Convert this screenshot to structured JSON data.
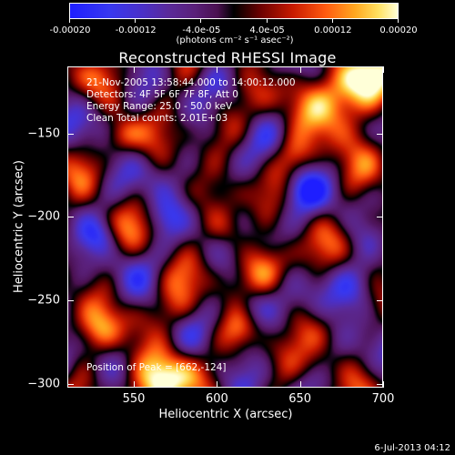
{
  "colorbar": {
    "tick_labels": [
      "-0.00020",
      "-0.00012",
      "-4.0e-05",
      "4.0e-05",
      "0.00012",
      "0.00020"
    ],
    "tick_values": [
      -0.0002,
      -0.00012,
      -4e-05,
      4e-05,
      0.00012,
      0.0002
    ],
    "range": [
      -0.0002,
      0.0002
    ],
    "unit_label": "(photons cm⁻² s⁻¹ asec⁻²)",
    "colors": [
      "#1e1eff",
      "#5a2a9a",
      "#000000",
      "#c81a00",
      "#ffa820",
      "#ffffd8"
    ]
  },
  "chart_data": {
    "type": "heatmap",
    "title": "Reconstructed RHESSI Image",
    "xlabel": "Heliocentric X (arcsec)",
    "ylabel": "Heliocentric Y (arcsec)",
    "xlim": [
      510,
      700
    ],
    "ylim": [
      -302,
      -110
    ],
    "x_ticks": [
      550,
      600,
      650,
      700
    ],
    "y_ticks": [
      -150,
      -200,
      -250,
      -300
    ],
    "annotations": {
      "line1": "21-Nov-2005 13:58:44.000 to 14:00:12.000",
      "line2": "Detectors: 4F 5F 6F 7F 8F, Att 0",
      "line3": "Energy Range: 25.0 - 50.0 keV",
      "line4": "Clean     Total counts: 2.01E+03",
      "peak": "Position of Peak = [662,-124]"
    },
    "peak": [
      662,
      -124
    ]
  },
  "footer": {
    "timestamp": "6-Jul-2013 04:12"
  }
}
